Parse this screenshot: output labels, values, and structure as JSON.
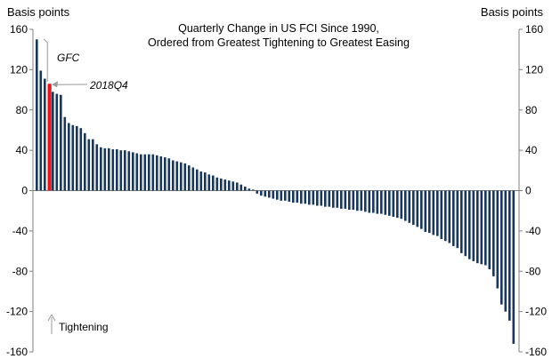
{
  "chart_data": {
    "type": "bar",
    "title": "Quarterly Change in US FCI Since 1990,",
    "subtitle": "Ordered from Greatest Tightening to Greatest Easing",
    "ylabel_left": "Basis points",
    "ylabel_right": "Basis points",
    "ylim": [
      -160,
      160
    ],
    "yticks": [
      160,
      120,
      80,
      40,
      0,
      -40,
      -80,
      -120,
      -160
    ],
    "ytick_labels": [
      "160",
      "120",
      "80",
      "40",
      "0",
      "-40",
      "-80",
      "-120",
      "-160"
    ],
    "highlight_index": 3,
    "colors": {
      "bar": "#17375e",
      "highlight": "#e8141b",
      "axis": "#808080",
      "annotation": "#999999"
    },
    "annotations": {
      "gfc": "GFC",
      "q4": "2018Q4",
      "tightening": "Tightening"
    },
    "values": [
      150,
      119,
      111,
      106,
      98,
      96,
      95,
      73,
      67,
      65,
      64,
      62,
      57,
      51,
      51,
      46,
      43,
      42,
      42,
      41,
      41,
      40,
      40,
      39,
      38,
      37,
      36,
      36,
      36,
      36,
      35,
      34,
      33,
      32,
      30,
      29,
      28,
      27,
      25,
      23,
      21,
      19,
      18,
      16,
      15,
      13,
      12,
      11,
      10,
      9,
      8,
      6,
      4,
      2,
      1,
      -3,
      -5,
      -6,
      -7,
      -8,
      -9,
      -10,
      -10,
      -11,
      -12,
      -12,
      -13,
      -13,
      -14,
      -14,
      -15,
      -15,
      -16,
      -16,
      -17,
      -17,
      -18,
      -18,
      -19,
      -19,
      -20,
      -20,
      -21,
      -22,
      -22,
      -23,
      -23,
      -24,
      -25,
      -26,
      -27,
      -28,
      -30,
      -32,
      -34,
      -36,
      -38,
      -41,
      -42,
      -44,
      -45,
      -48,
      -50,
      -52,
      -55,
      -57,
      -62,
      -65,
      -68,
      -70,
      -72,
      -73,
      -74,
      -78,
      -85,
      -97,
      -113,
      -120,
      -129,
      -152
    ]
  }
}
